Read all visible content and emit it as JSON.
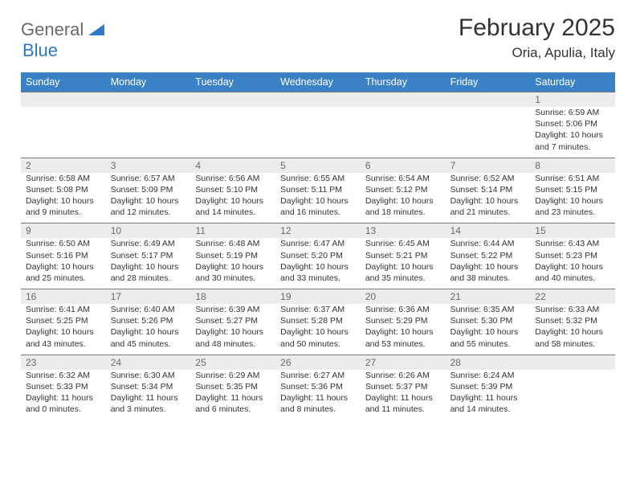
{
  "brand": {
    "general": "General",
    "blue": "Blue"
  },
  "title": "February 2025",
  "location": "Oria, Apulia, Italy",
  "colors": {
    "header_bg": "#3b81c6",
    "header_text": "#ffffff",
    "daynum_bg": "#ececec",
    "daynum_text": "#6a6a6a",
    "border": "#7a7a7a",
    "body_text": "#333333",
    "brand_gray": "#6a6a6a",
    "brand_blue": "#2f78c3"
  },
  "weekdays": [
    "Sunday",
    "Monday",
    "Tuesday",
    "Wednesday",
    "Thursday",
    "Friday",
    "Saturday"
  ],
  "weeks": [
    [
      {},
      {},
      {},
      {},
      {},
      {},
      {
        "n": "1",
        "sr": "6:59 AM",
        "ss": "5:06 PM",
        "dl": "10 hours and 7 minutes."
      }
    ],
    [
      {
        "n": "2",
        "sr": "6:58 AM",
        "ss": "5:08 PM",
        "dl": "10 hours and 9 minutes."
      },
      {
        "n": "3",
        "sr": "6:57 AM",
        "ss": "5:09 PM",
        "dl": "10 hours and 12 minutes."
      },
      {
        "n": "4",
        "sr": "6:56 AM",
        "ss": "5:10 PM",
        "dl": "10 hours and 14 minutes."
      },
      {
        "n": "5",
        "sr": "6:55 AM",
        "ss": "5:11 PM",
        "dl": "10 hours and 16 minutes."
      },
      {
        "n": "6",
        "sr": "6:54 AM",
        "ss": "5:12 PM",
        "dl": "10 hours and 18 minutes."
      },
      {
        "n": "7",
        "sr": "6:52 AM",
        "ss": "5:14 PM",
        "dl": "10 hours and 21 minutes."
      },
      {
        "n": "8",
        "sr": "6:51 AM",
        "ss": "5:15 PM",
        "dl": "10 hours and 23 minutes."
      }
    ],
    [
      {
        "n": "9",
        "sr": "6:50 AM",
        "ss": "5:16 PM",
        "dl": "10 hours and 25 minutes."
      },
      {
        "n": "10",
        "sr": "6:49 AM",
        "ss": "5:17 PM",
        "dl": "10 hours and 28 minutes."
      },
      {
        "n": "11",
        "sr": "6:48 AM",
        "ss": "5:19 PM",
        "dl": "10 hours and 30 minutes."
      },
      {
        "n": "12",
        "sr": "6:47 AM",
        "ss": "5:20 PM",
        "dl": "10 hours and 33 minutes."
      },
      {
        "n": "13",
        "sr": "6:45 AM",
        "ss": "5:21 PM",
        "dl": "10 hours and 35 minutes."
      },
      {
        "n": "14",
        "sr": "6:44 AM",
        "ss": "5:22 PM",
        "dl": "10 hours and 38 minutes."
      },
      {
        "n": "15",
        "sr": "6:43 AM",
        "ss": "5:23 PM",
        "dl": "10 hours and 40 minutes."
      }
    ],
    [
      {
        "n": "16",
        "sr": "6:41 AM",
        "ss": "5:25 PM",
        "dl": "10 hours and 43 minutes."
      },
      {
        "n": "17",
        "sr": "6:40 AM",
        "ss": "5:26 PM",
        "dl": "10 hours and 45 minutes."
      },
      {
        "n": "18",
        "sr": "6:39 AM",
        "ss": "5:27 PM",
        "dl": "10 hours and 48 minutes."
      },
      {
        "n": "19",
        "sr": "6:37 AM",
        "ss": "5:28 PM",
        "dl": "10 hours and 50 minutes."
      },
      {
        "n": "20",
        "sr": "6:36 AM",
        "ss": "5:29 PM",
        "dl": "10 hours and 53 minutes."
      },
      {
        "n": "21",
        "sr": "6:35 AM",
        "ss": "5:30 PM",
        "dl": "10 hours and 55 minutes."
      },
      {
        "n": "22",
        "sr": "6:33 AM",
        "ss": "5:32 PM",
        "dl": "10 hours and 58 minutes."
      }
    ],
    [
      {
        "n": "23",
        "sr": "6:32 AM",
        "ss": "5:33 PM",
        "dl": "11 hours and 0 minutes."
      },
      {
        "n": "24",
        "sr": "6:30 AM",
        "ss": "5:34 PM",
        "dl": "11 hours and 3 minutes."
      },
      {
        "n": "25",
        "sr": "6:29 AM",
        "ss": "5:35 PM",
        "dl": "11 hours and 6 minutes."
      },
      {
        "n": "26",
        "sr": "6:27 AM",
        "ss": "5:36 PM",
        "dl": "11 hours and 8 minutes."
      },
      {
        "n": "27",
        "sr": "6:26 AM",
        "ss": "5:37 PM",
        "dl": "11 hours and 11 minutes."
      },
      {
        "n": "28",
        "sr": "6:24 AM",
        "ss": "5:39 PM",
        "dl": "11 hours and 14 minutes."
      },
      {}
    ]
  ],
  "labels": {
    "sunrise": "Sunrise:",
    "sunset": "Sunset:",
    "daylight": "Daylight:"
  }
}
